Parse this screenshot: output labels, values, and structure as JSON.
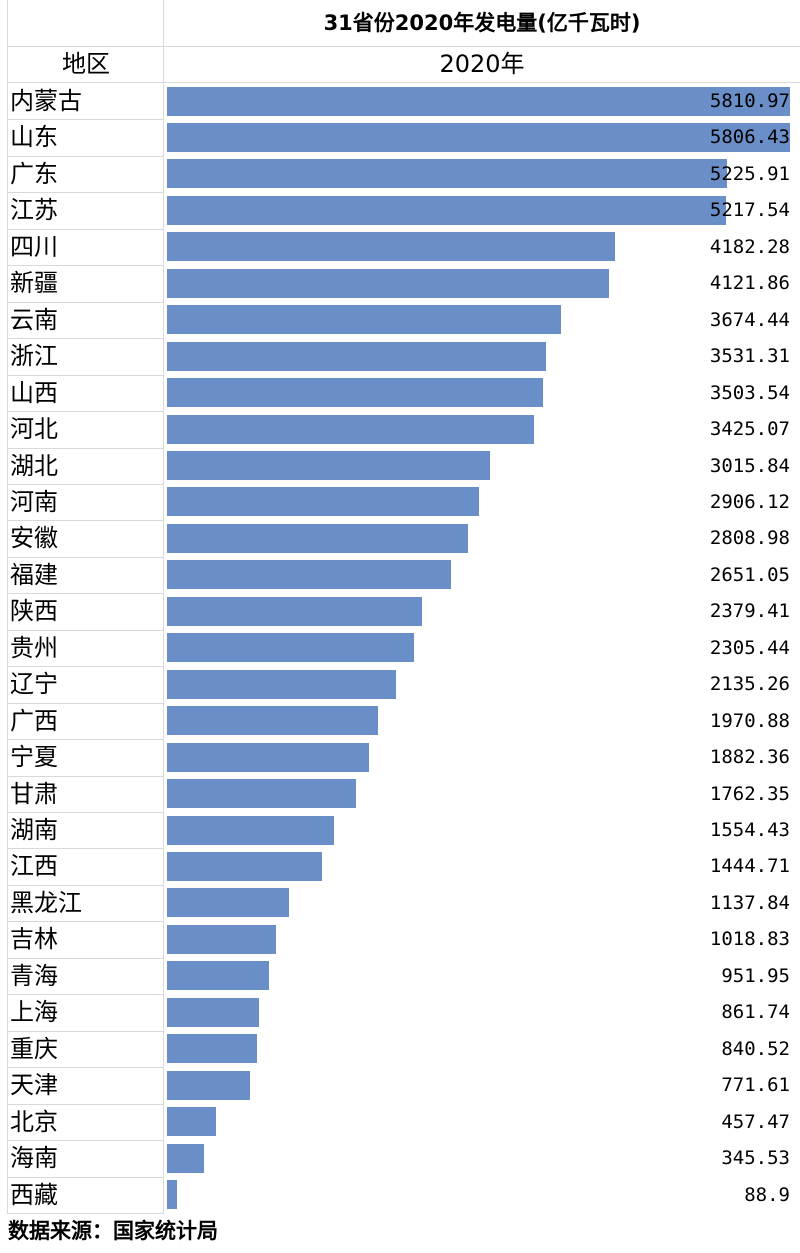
{
  "title": "31省份2020年发电量(亿千瓦时)",
  "header": {
    "region_label": "地区",
    "year_label": "2020年"
  },
  "source": "数据来源：国家统计局",
  "chart_data": {
    "type": "bar",
    "orientation": "horizontal",
    "title": "31省份2020年发电量(亿千瓦时)",
    "xlim": [
      0,
      5811
    ],
    "bar_color": "#6a8fc8",
    "categories": [
      "内蒙古",
      "山东",
      "广东",
      "江苏",
      "四川",
      "新疆",
      "云南",
      "浙江",
      "山西",
      "河北",
      "湖北",
      "河南",
      "安徽",
      "福建",
      "陕西",
      "贵州",
      "辽宁",
      "广西",
      "宁夏",
      "甘肃",
      "湖南",
      "江西",
      "黑龙江",
      "吉林",
      "青海",
      "上海",
      "重庆",
      "天津",
      "北京",
      "海南",
      "西藏"
    ],
    "values": [
      5810.97,
      5806.43,
      5225.91,
      5217.54,
      4182.28,
      4121.86,
      3674.44,
      3531.31,
      3503.54,
      3425.07,
      3015.84,
      2906.12,
      2808.98,
      2651.05,
      2379.41,
      2305.44,
      2135.26,
      1970.88,
      1882.36,
      1762.35,
      1554.43,
      1444.71,
      1137.84,
      1018.83,
      951.95,
      861.74,
      840.52,
      771.61,
      457.47,
      345.53,
      88.9
    ],
    "value_labels": [
      "5810.97",
      "5806.43",
      "5225.91",
      "5217.54",
      "4182.28",
      "4121.86",
      "3674.44",
      "3531.31",
      "3503.54",
      "3425.07",
      "3015.84",
      "2906.12",
      "2808.98",
      "2651.05",
      "2379.41",
      "2305.44",
      "2135.26",
      "1970.88",
      "1882.36",
      "1762.35",
      "1554.43",
      "1444.71",
      "1137.84",
      "1018.83",
      "951.95",
      "861.74",
      "840.52",
      "771.61",
      "457.47",
      "345.53",
      "88.9"
    ]
  }
}
